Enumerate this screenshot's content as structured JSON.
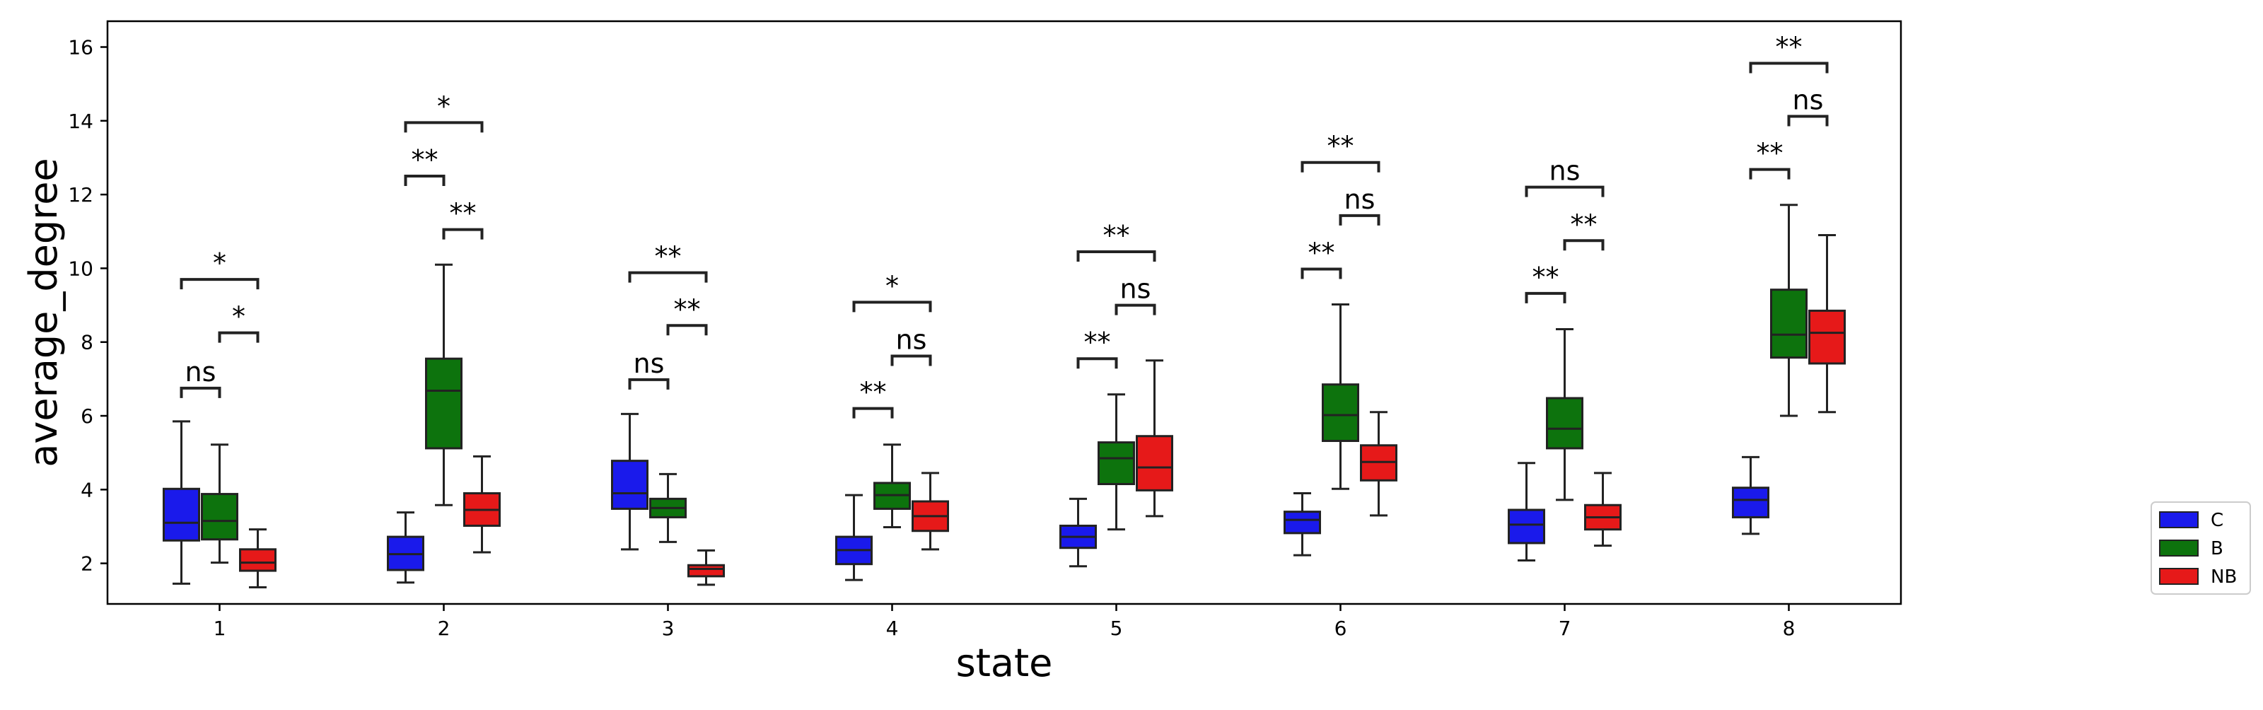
{
  "chart_data": {
    "type": "box",
    "xlabel": "state",
    "ylabel": "average_degree",
    "categories": [
      "1",
      "2",
      "3",
      "4",
      "5",
      "6",
      "7",
      "8"
    ],
    "ylim": [
      0.9,
      16.7
    ],
    "yticks": [
      2,
      4,
      6,
      8,
      10,
      12,
      14,
      16
    ],
    "grid": false,
    "legend_position": "outside-right-bottom",
    "series": [
      {
        "name": "C",
        "color": "#1a1aeb",
        "boxes": [
          {
            "whislo": 1.45,
            "q1": 2.62,
            "med": 3.1,
            "q3": 4.02,
            "whishi": 5.85
          },
          {
            "whislo": 1.48,
            "q1": 1.82,
            "med": 2.25,
            "q3": 2.72,
            "whishi": 3.38
          },
          {
            "whislo": 2.38,
            "q1": 3.48,
            "med": 3.9,
            "q3": 4.78,
            "whishi": 6.05
          },
          {
            "whislo": 1.55,
            "q1": 1.98,
            "med": 2.36,
            "q3": 2.72,
            "whishi": 3.85
          },
          {
            "whislo": 1.92,
            "q1": 2.42,
            "med": 2.72,
            "q3": 3.02,
            "whishi": 3.75
          },
          {
            "whislo": 2.22,
            "q1": 2.82,
            "med": 3.18,
            "q3": 3.4,
            "whishi": 3.9
          },
          {
            "whislo": 2.08,
            "q1": 2.55,
            "med": 3.05,
            "q3": 3.45,
            "whishi": 4.72
          },
          {
            "whislo": 2.8,
            "q1": 3.25,
            "med": 3.72,
            "q3": 4.05,
            "whishi": 4.88
          }
        ]
      },
      {
        "name": "B",
        "color": "#0d730d",
        "boxes": [
          {
            "whislo": 2.02,
            "q1": 2.65,
            "med": 3.15,
            "q3": 3.88,
            "whishi": 5.22
          },
          {
            "whislo": 3.58,
            "q1": 5.12,
            "med": 6.68,
            "q3": 7.55,
            "whishi": 10.1
          },
          {
            "whislo": 2.58,
            "q1": 3.25,
            "med": 3.5,
            "q3": 3.75,
            "whishi": 4.42
          },
          {
            "whislo": 2.98,
            "q1": 3.48,
            "med": 3.85,
            "q3": 4.18,
            "whishi": 5.22
          },
          {
            "whislo": 2.92,
            "q1": 4.15,
            "med": 4.85,
            "q3": 5.28,
            "whishi": 6.58
          },
          {
            "whislo": 4.02,
            "q1": 5.32,
            "med": 6.02,
            "q3": 6.85,
            "whishi": 9.02
          },
          {
            "whislo": 3.72,
            "q1": 5.12,
            "med": 5.65,
            "q3": 6.48,
            "whishi": 8.35
          },
          {
            "whislo": 6.0,
            "q1": 7.58,
            "med": 8.2,
            "q3": 9.42,
            "whishi": 11.72
          }
        ]
      },
      {
        "name": "NB",
        "color": "#e61919",
        "boxes": [
          {
            "whislo": 1.35,
            "q1": 1.8,
            "med": 2.02,
            "q3": 2.38,
            "whishi": 2.92
          },
          {
            "whislo": 2.3,
            "q1": 3.02,
            "med": 3.45,
            "q3": 3.9,
            "whishi": 4.9
          },
          {
            "whislo": 1.42,
            "q1": 1.65,
            "med": 1.85,
            "q3": 1.95,
            "whishi": 2.35
          },
          {
            "whislo": 2.38,
            "q1": 2.88,
            "med": 3.28,
            "q3": 3.68,
            "whishi": 4.45
          },
          {
            "whislo": 3.28,
            "q1": 3.98,
            "med": 4.6,
            "q3": 5.45,
            "whishi": 7.5
          },
          {
            "whislo": 3.3,
            "q1": 4.25,
            "med": 4.75,
            "q3": 5.2,
            "whishi": 6.1
          },
          {
            "whislo": 2.48,
            "q1": 2.92,
            "med": 3.25,
            "q3": 3.58,
            "whishi": 4.45
          },
          {
            "whislo": 6.1,
            "q1": 7.42,
            "med": 8.25,
            "q3": 8.85,
            "whishi": 10.9
          }
        ]
      }
    ],
    "annotations": [
      {
        "category": "1",
        "from": "C",
        "to": "B",
        "y": 6.75,
        "label": "ns"
      },
      {
        "category": "1",
        "from": "B",
        "to": "NB",
        "y": 8.25,
        "label": "*"
      },
      {
        "category": "1",
        "from": "C",
        "to": "NB",
        "y": 9.7,
        "label": "*"
      },
      {
        "category": "2",
        "from": "C",
        "to": "B",
        "y": 12.5,
        "label": "**"
      },
      {
        "category": "2",
        "from": "B",
        "to": "NB",
        "y": 11.05,
        "label": "**"
      },
      {
        "category": "2",
        "from": "C",
        "to": "NB",
        "y": 13.95,
        "label": "*"
      },
      {
        "category": "3",
        "from": "C",
        "to": "B",
        "y": 6.98,
        "label": "ns"
      },
      {
        "category": "3",
        "from": "B",
        "to": "NB",
        "y": 8.45,
        "label": "**"
      },
      {
        "category": "3",
        "from": "C",
        "to": "NB",
        "y": 9.88,
        "label": "**"
      },
      {
        "category": "4",
        "from": "C",
        "to": "B",
        "y": 6.2,
        "label": "**"
      },
      {
        "category": "4",
        "from": "B",
        "to": "NB",
        "y": 7.62,
        "label": "ns"
      },
      {
        "category": "4",
        "from": "C",
        "to": "NB",
        "y": 9.08,
        "label": "*"
      },
      {
        "category": "5",
        "from": "C",
        "to": "B",
        "y": 7.55,
        "label": "**"
      },
      {
        "category": "5",
        "from": "B",
        "to": "NB",
        "y": 9.0,
        "label": "ns"
      },
      {
        "category": "5",
        "from": "C",
        "to": "NB",
        "y": 10.45,
        "label": "**"
      },
      {
        "category": "6",
        "from": "C",
        "to": "B",
        "y": 9.98,
        "label": "**"
      },
      {
        "category": "6",
        "from": "B",
        "to": "NB",
        "y": 11.43,
        "label": "ns"
      },
      {
        "category": "6",
        "from": "C",
        "to": "NB",
        "y": 12.87,
        "label": "**"
      },
      {
        "category": "7",
        "from": "C",
        "to": "B",
        "y": 9.32,
        "label": "**"
      },
      {
        "category": "7",
        "from": "B",
        "to": "NB",
        "y": 10.75,
        "label": "**"
      },
      {
        "category": "7",
        "from": "C",
        "to": "NB",
        "y": 12.2,
        "label": "ns"
      },
      {
        "category": "8",
        "from": "C",
        "to": "B",
        "y": 12.68,
        "label": "**"
      },
      {
        "category": "8",
        "from": "B",
        "to": "NB",
        "y": 14.12,
        "label": "ns"
      },
      {
        "category": "8",
        "from": "C",
        "to": "NB",
        "y": 15.56,
        "label": "**"
      }
    ]
  }
}
